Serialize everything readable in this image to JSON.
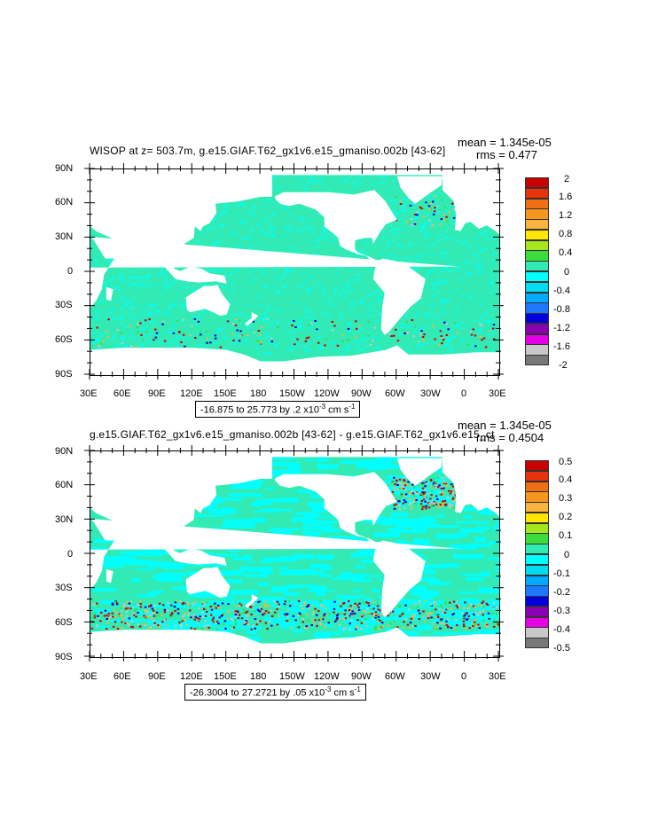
{
  "panels": [
    {
      "title": "WISOP at z= 503.7m, g.e15.GIAF.T62_gx1v6.e15_gmaniso.002b [43-62]",
      "mean": "mean = 1.345e-05",
      "rms": "rms = 0.477",
      "lat_labels": [
        "90N",
        "60N",
        "30N",
        "0",
        "30S",
        "60S",
        "90S"
      ],
      "lon_labels": [
        "30E",
        "60E",
        "90E",
        "120E",
        "150E",
        "180",
        "150W",
        "120W",
        "90W",
        "60W",
        "30W",
        "0",
        "30E"
      ],
      "range_text": "-16.875 to 25.773 by .2 x10",
      "range_exp": "-3",
      "range_unit": " cm s",
      "range_unit_exp": "-1",
      "colorbar_labels": [
        "2",
        "1.6",
        "1.2",
        "0.8",
        "0.4",
        "0",
        "-0.4",
        "-0.8",
        "-1.2",
        "-1.6",
        "-2"
      ],
      "colorbar_colors": [
        "#c80000",
        "#e8320a",
        "#f06e14",
        "#f5961e",
        "#f8b43c",
        "#ffe600",
        "#a5e61e",
        "#3cdc3c",
        "#32ebb4",
        "#00ffff",
        "#00dcf0",
        "#00aaff",
        "#1e78ff",
        "#0000dc",
        "#8c00b4",
        "#e600e6",
        "#c8c8c8",
        "#787878"
      ]
    },
    {
      "title": "g.e15.GIAF.T62_gx1v6.e15_gmaniso.002b [43-62] - g.e15.GIAF.T62_gx1v6.e15_ct",
      "mean": "mean = 1.345e-05",
      "rms": "rms = 0.4504",
      "lat_labels": [
        "90N",
        "60N",
        "30N",
        "0",
        "30S",
        "60S",
        "90S"
      ],
      "lon_labels": [
        "30E",
        "60E",
        "90E",
        "120E",
        "150E",
        "180",
        "150W",
        "120W",
        "90W",
        "60W",
        "30W",
        "0",
        "30E"
      ],
      "range_text": "-26.3004 to 27.2721 by .05 x10",
      "range_exp": "-3",
      "range_unit": " cm s",
      "range_unit_exp": "-1",
      "colorbar_labels": [
        "0.5",
        "0.4",
        "0.3",
        "0.2",
        "0.1",
        "0",
        "-0.1",
        "-0.2",
        "-0.3",
        "-0.4",
        "-0.5"
      ],
      "colorbar_colors": [
        "#c80000",
        "#e8320a",
        "#f06e14",
        "#f5961e",
        "#f8b43c",
        "#ffe600",
        "#a5e61e",
        "#3cdc3c",
        "#32ebb4",
        "#00ffff",
        "#00dcf0",
        "#00aaff",
        "#1e78ff",
        "#0000dc",
        "#8c00b4",
        "#e600e6",
        "#c8c8c8",
        "#787878"
      ]
    }
  ],
  "colors": {
    "ocean_main": "#32ebb4",
    "ocean_alt": "#00ffff",
    "land": "#ffffff"
  }
}
